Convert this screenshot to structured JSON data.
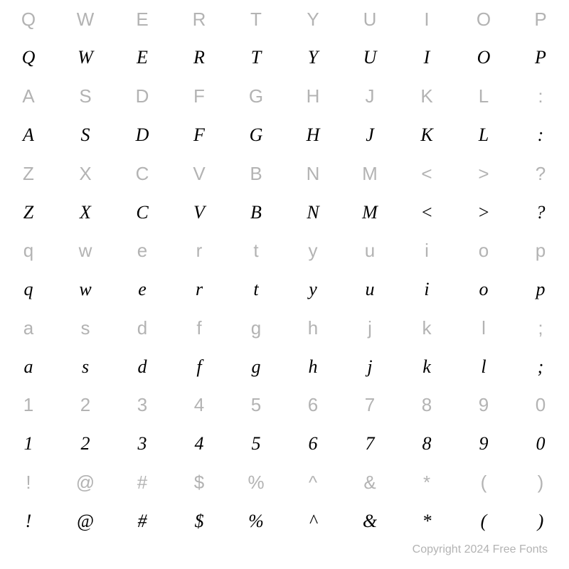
{
  "grid": {
    "columns": 10,
    "rows": [
      {
        "type": "ref",
        "chars": [
          "Q",
          "W",
          "E",
          "R",
          "T",
          "Y",
          "U",
          "I",
          "O",
          "P"
        ]
      },
      {
        "type": "script",
        "chars": [
          "Q",
          "W",
          "E",
          "R",
          "T",
          "Y",
          "U",
          "I",
          "O",
          "P"
        ]
      },
      {
        "type": "ref",
        "chars": [
          "A",
          "S",
          "D",
          "F",
          "G",
          "H",
          "J",
          "K",
          "L",
          ":"
        ]
      },
      {
        "type": "script",
        "chars": [
          "A",
          "S",
          "D",
          "F",
          "G",
          "H",
          "J",
          "K",
          "L",
          ":"
        ]
      },
      {
        "type": "ref",
        "chars": [
          "Z",
          "X",
          "C",
          "V",
          "B",
          "N",
          "M",
          "<",
          ">",
          "?"
        ]
      },
      {
        "type": "script",
        "chars": [
          "Z",
          "X",
          "C",
          "V",
          "B",
          "N",
          "M",
          "<",
          ">",
          "?"
        ]
      },
      {
        "type": "ref",
        "chars": [
          "q",
          "w",
          "e",
          "r",
          "t",
          "y",
          "u",
          "i",
          "o",
          "p"
        ]
      },
      {
        "type": "script",
        "chars": [
          "q",
          "w",
          "e",
          "r",
          "t",
          "y",
          "u",
          "i",
          "o",
          "p"
        ]
      },
      {
        "type": "ref",
        "chars": [
          "a",
          "s",
          "d",
          "f",
          "g",
          "h",
          "j",
          "k",
          "l",
          ";"
        ]
      },
      {
        "type": "script",
        "chars": [
          "a",
          "s",
          "d",
          "f",
          "g",
          "h",
          "j",
          "k",
          "l",
          ";"
        ]
      },
      {
        "type": "ref",
        "chars": [
          "1",
          "2",
          "3",
          "4",
          "5",
          "6",
          "7",
          "8",
          "9",
          "0"
        ]
      },
      {
        "type": "script",
        "chars": [
          "1",
          "2",
          "3",
          "4",
          "5",
          "6",
          "7",
          "8",
          "9",
          "0"
        ]
      }
    ],
    "symbol_rows": [
      {
        "type": "ref",
        "chars": [
          "!",
          "@",
          "#",
          "$",
          "%",
          "^",
          "&",
          "*",
          "(",
          ")"
        ]
      },
      {
        "type": "script",
        "chars": [
          "!",
          "@",
          "#",
          "$",
          "%",
          "^",
          "&",
          "*",
          "(",
          ")"
        ]
      }
    ]
  },
  "style": {
    "ref_color": "#b3b3b3",
    "ref_fontsize": 26,
    "ref_fontfamily": "Arial",
    "script_color": "#000000",
    "script_fontsize": 26,
    "script_fontfamily": "cursive",
    "background_color": "#ffffff"
  },
  "copyright": {
    "text": "Copyright 2024 Free Fonts",
    "color": "#b3b3b3",
    "fontsize": 16
  }
}
